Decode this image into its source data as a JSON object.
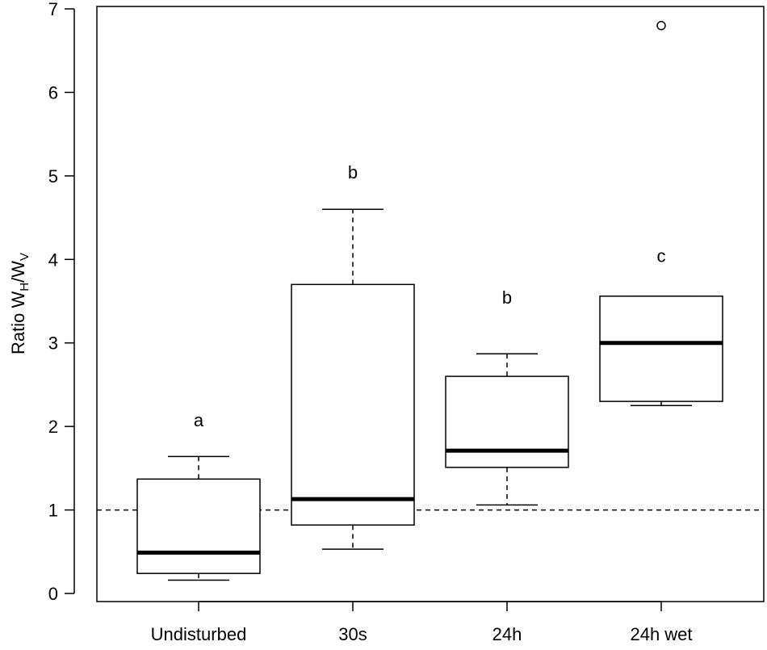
{
  "chart_data": {
    "type": "box",
    "categories": [
      "Undisturbed",
      "30s",
      "24h",
      "24h wet"
    ],
    "boxes": [
      {
        "category": "Undisturbed",
        "whisker_low": 0.16,
        "q1": 0.24,
        "median": 0.49,
        "q3": 1.37,
        "whisker_high": 1.64,
        "outliers": []
      },
      {
        "category": "30s",
        "whisker_low": 0.53,
        "q1": 0.82,
        "median": 1.13,
        "q3": 3.7,
        "whisker_high": 4.6,
        "outliers": []
      },
      {
        "category": "24h",
        "whisker_low": 1.06,
        "q1": 1.51,
        "median": 1.71,
        "q3": 2.6,
        "whisker_high": 2.87,
        "outliers": []
      },
      {
        "category": "24h wet",
        "whisker_low": 2.25,
        "q1": 2.3,
        "median": 3.0,
        "q3": 3.56,
        "whisker_high": 3.56,
        "outliers": [
          6.8
        ]
      }
    ],
    "significance_letters": [
      {
        "category": "Undisturbed",
        "letter": "a",
        "y": 2.0
      },
      {
        "category": "30s",
        "letter": "b",
        "y": 4.97
      },
      {
        "category": "24h",
        "letter": "b",
        "y": 3.47
      },
      {
        "category": "24h wet",
        "letter": "c",
        "y": 3.97
      }
    ],
    "reference_line": {
      "y": 1,
      "style": "dashed"
    },
    "ylabel": {
      "base": "Ratio W",
      "sub1": "H",
      "slash": "/W",
      "sub2": "V"
    },
    "xlabel": "",
    "title": "",
    "ylim": [
      0,
      7
    ],
    "yticks": [
      0,
      1,
      2,
      3,
      4,
      5,
      6,
      7
    ],
    "grid": false,
    "legend": "none"
  }
}
